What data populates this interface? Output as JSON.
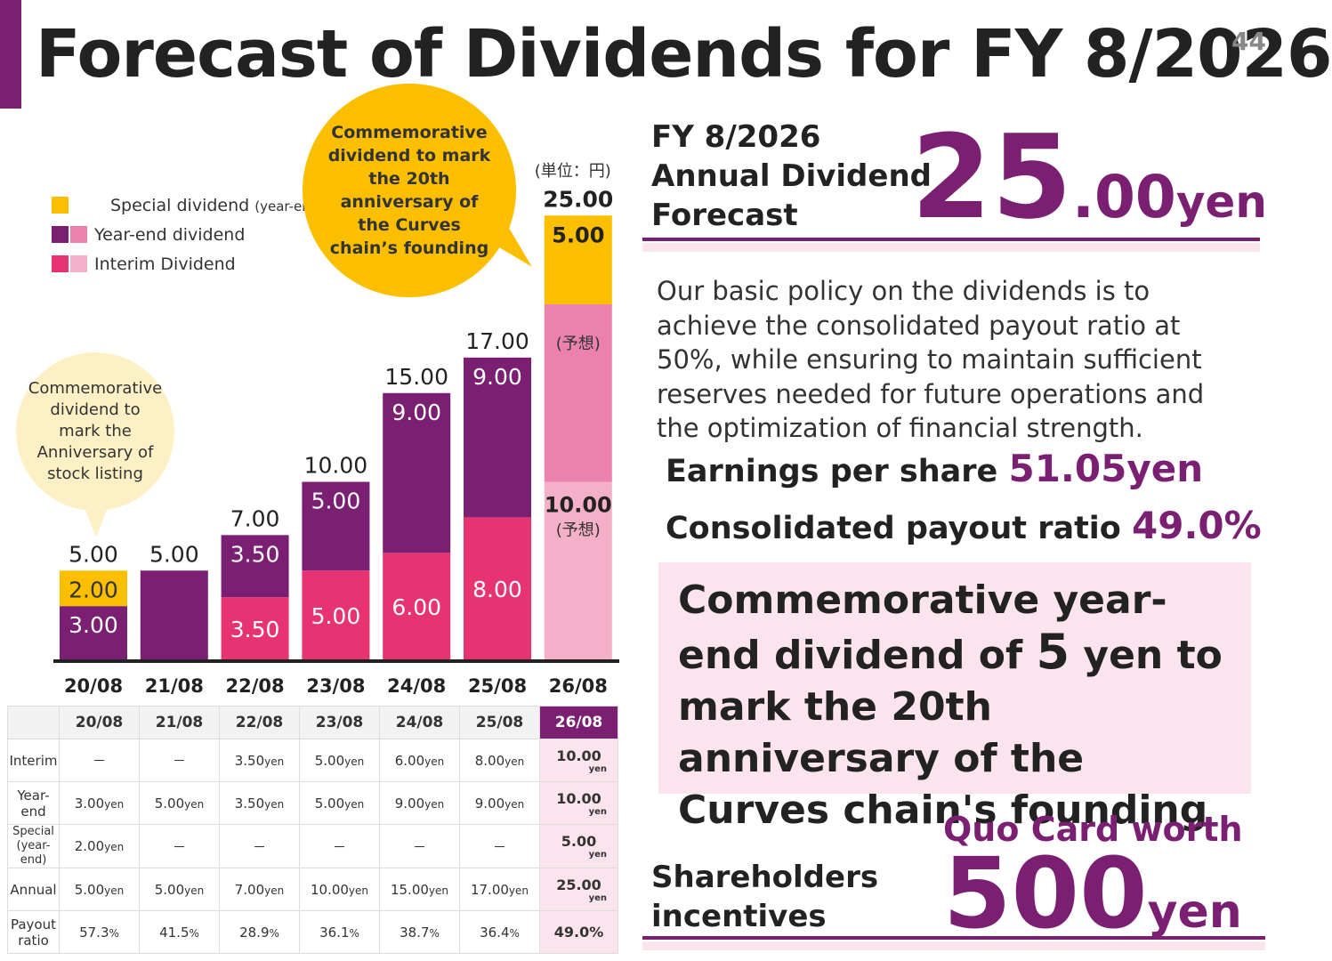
{
  "title": "Forecast of Dividends for FY 8/2026",
  "page_number": "44",
  "legend": {
    "special": "Special dividend",
    "special_note": "(year-end)",
    "yearend": "Year-end dividend",
    "interim": "Interim Dividend"
  },
  "callouts": {
    "chain": "Commemorative dividend to mark the 20th anniversary of the Curves chain’s founding",
    "listing": "Commemorative dividend to mark the Anniversary of stock listing"
  },
  "unit_note": "(単位：円)",
  "forecast_note": "(予想)",
  "colors": {
    "special": "#fbbf00",
    "yearend": "#7b1f73",
    "interim": "#e83372",
    "yearend_forecast": "#eb82ae",
    "interim_forecast": "#f4b0c8",
    "brand": "#7b1f73",
    "highlight_bg": "#fce4ee"
  },
  "chart_data": {
    "type": "bar",
    "stacked": true,
    "categories": [
      "20/08",
      "21/08",
      "22/08",
      "23/08",
      "24/08",
      "25/08",
      "26/08"
    ],
    "series": [
      {
        "name": "Interim Dividend",
        "values": [
          0,
          0,
          3.5,
          5.0,
          6.0,
          8.0,
          10.0
        ]
      },
      {
        "name": "Year-end dividend",
        "values": [
          3.0,
          5.0,
          3.5,
          5.0,
          9.0,
          9.0,
          10.0
        ]
      },
      {
        "name": "Special dividend (year-end)",
        "values": [
          2.0,
          0,
          0,
          0,
          0,
          0,
          5.0
        ]
      }
    ],
    "totals": [
      "5.00",
      "5.00",
      "7.00",
      "10.00",
      "15.00",
      "17.00",
      "25.00"
    ],
    "segment_labels": [
      [
        "",
        "3.00",
        "2.00"
      ],
      [
        "",
        "",
        ""
      ],
      [
        "3.50",
        "3.50",
        ""
      ],
      [
        "5.00",
        "5.00",
        ""
      ],
      [
        "6.00",
        "9.00",
        ""
      ],
      [
        "8.00",
        "9.00",
        ""
      ],
      [
        "10.00",
        "",
        "5.00"
      ]
    ],
    "forecast_index": 6,
    "ylim": [
      0,
      26
    ],
    "legend_position": "top-left"
  },
  "table": {
    "headers": [
      "",
      "20/08",
      "21/08",
      "22/08",
      "23/08",
      "24/08",
      "25/08",
      "26/08"
    ],
    "rows": [
      {
        "label": "Interim",
        "cells": [
          "－",
          "－",
          "3.50",
          "5.00",
          "6.00",
          "8.00",
          "10.00"
        ],
        "units": [
          "",
          "",
          "yen",
          "yen",
          "yen",
          "yen",
          "yen"
        ]
      },
      {
        "label": "Year-\nend",
        "cells": [
          "3.00",
          "5.00",
          "3.50",
          "5.00",
          "9.00",
          "9.00",
          "10.00"
        ],
        "units": [
          "yen",
          "yen",
          "yen",
          "yen",
          "yen",
          "yen",
          "yen"
        ]
      },
      {
        "label": "Special\n(year-end)",
        "cells": [
          "2.00",
          "－",
          "－",
          "－",
          "－",
          "－",
          "5.00"
        ],
        "units": [
          "yen",
          "",
          "",
          "",
          "",
          "",
          "yen"
        ]
      },
      {
        "label": "Annual",
        "cells": [
          "5.00",
          "5.00",
          "7.00",
          "10.00",
          "15.00",
          "17.00",
          "25.00"
        ],
        "units": [
          "yen",
          "yen",
          "yen",
          "yen",
          "yen",
          "yen",
          "yen"
        ]
      },
      {
        "label": "Payout\nratio",
        "cells": [
          "57.3",
          "41.5",
          "28.9",
          "36.1",
          "38.7",
          "36.4",
          "49.0"
        ],
        "units": [
          "%",
          "%",
          "%",
          "%",
          "%",
          "%",
          "%"
        ]
      }
    ]
  },
  "forecast": {
    "label_line1": "FY 8/2026",
    "label_line2": "Annual Dividend",
    "label_line3": "Forecast",
    "amount_int": "25",
    "amount_dec": ".00",
    "amount_unit": "yen"
  },
  "policy": "Our basic policy on the dividends is to achieve the consolidated payout ratio at 50%, while ensuring to maintain sufficient reserves needed for future operations and the optimization of financial strength.",
  "eps": {
    "label": "Earnings per share ",
    "value": "51.05yen"
  },
  "payout": {
    "label": "Consolidated payout ratio ",
    "value": "49.0%"
  },
  "commemorative": {
    "part1": "Commemorative year-end dividend of ",
    "amount": "5",
    "part2": " yen to mark the 20th anniversary of the Curves chain's founding"
  },
  "incentives": {
    "label_line1": "Shareholders",
    "label_line2": "incentives",
    "quo_label": "Quo Card worth",
    "amount": "500",
    "unit": "yen"
  }
}
